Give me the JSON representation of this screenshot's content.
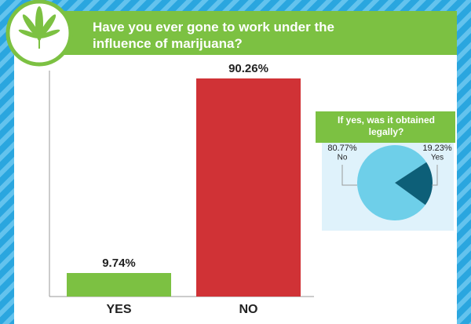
{
  "chart_data": [
    {
      "type": "bar",
      "title": "Have you ever gone to work under the influence of marijuana?",
      "categories": [
        "YES",
        "NO"
      ],
      "values": [
        9.74,
        90.26
      ],
      "value_labels": [
        "9.74%",
        "90.26%"
      ],
      "colors": [
        "#7cc142",
        "#d03236"
      ],
      "ylim": [
        0,
        100
      ]
    },
    {
      "type": "pie",
      "title": "If yes, was it obtained legally?",
      "categories": [
        "No",
        "Yes"
      ],
      "values": [
        80.77,
        19.23
      ],
      "value_labels": [
        "80.77%",
        "19.23%"
      ],
      "colors": [
        "#6ecfe9",
        "#0d5f78"
      ]
    }
  ]
}
